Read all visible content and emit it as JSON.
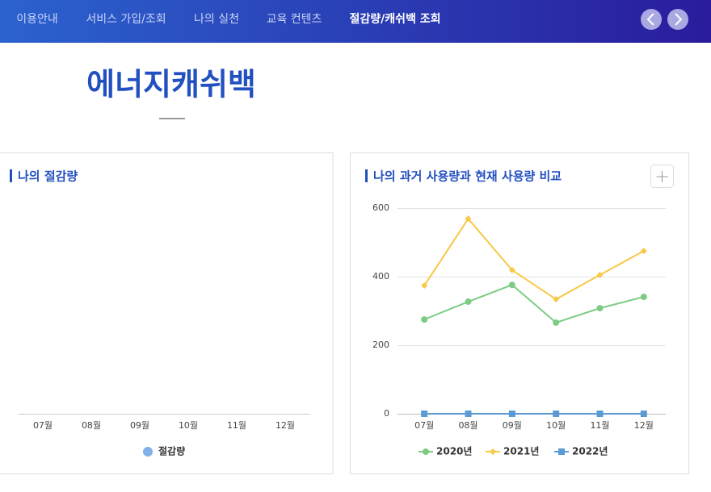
{
  "nav": {
    "items": [
      "이용안내",
      "서비스 가입/조회",
      "나의 실천",
      "교육 컨텐츠",
      "절감량/캐쉬백 조회"
    ],
    "active": 4
  },
  "page_title": "에너지캐쉬백",
  "chart_data": [
    {
      "type": "bar",
      "title": "나의 절감량",
      "categories": [
        "07월",
        "08월",
        "09월",
        "10월",
        "11월",
        "12월"
      ],
      "series": [
        {
          "name": "절감량",
          "color": "#7fb0e8",
          "values": [
            null,
            null,
            null,
            null,
            null,
            null
          ]
        }
      ]
    },
    {
      "type": "line",
      "title": "나의 과거 사용량과 현재 사용량 비교",
      "categories": [
        "07월",
        "08월",
        "09월",
        "10월",
        "11월",
        "12월"
      ],
      "ylim": [
        0,
        600
      ],
      "yticks": [
        0,
        200,
        400,
        600
      ],
      "grid": true,
      "series": [
        {
          "name": "2020년",
          "color": "#7ccc84",
          "marker": "circle",
          "values": [
            275,
            327,
            376,
            266,
            308,
            341
          ]
        },
        {
          "name": "2021년",
          "color": "#f7c948",
          "marker": "diamond",
          "values": [
            374,
            569,
            419,
            334,
            405,
            475
          ]
        },
        {
          "name": "2022년",
          "color": "#5b9bd5",
          "marker": "square",
          "values": [
            0,
            0,
            0,
            0,
            0,
            0
          ]
        }
      ]
    }
  ]
}
